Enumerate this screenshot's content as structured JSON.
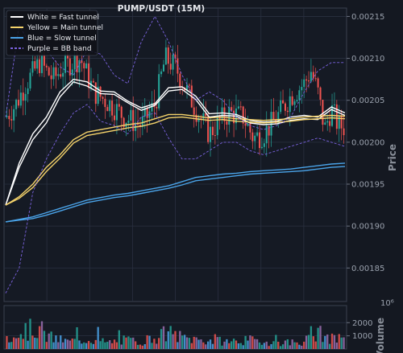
{
  "chart_data": {
    "type": "line",
    "title": "PUMP/USDT (15M)",
    "ylabel": "Price",
    "ylim": [
      0.00181,
      0.00216
    ],
    "yticks": [
      "0.00185",
      "0.00190",
      "0.00195",
      "0.00200",
      "0.00205",
      "0.00210",
      "0.00215"
    ],
    "ytick_values": [
      0.00185,
      0.0019,
      0.00195,
      0.002,
      0.00205,
      0.0021,
      0.00215
    ],
    "grid": true,
    "legend_position": "top-left",
    "legend": [
      {
        "label": "White = Fast tunnel",
        "color": "#ffffff",
        "dash": false
      },
      {
        "label": "Yellow = Main tunnel",
        "color": "#f5d36b",
        "dash": false
      },
      {
        "label": "Blue = Slow tunnel",
        "color": "#4aa3e8",
        "dash": false
      },
      {
        "label": "Purple = BB band",
        "color": "#7b63e0",
        "dash": true
      }
    ],
    "colors": {
      "up": "#26a69a",
      "down": "#ef5350",
      "background": "#141821",
      "grid": "#2a3040"
    },
    "series": [
      {
        "name": "White = Fast tunnel",
        "color": "#ffffff",
        "lines": [
          {
            "x": [
              0,
              4,
              8,
              12,
              16,
              20,
              24,
              28,
              32,
              36,
              40,
              44,
              48,
              52,
              56,
              60,
              64,
              68,
              72,
              76,
              80,
              84,
              88,
              92,
              96,
              100
            ],
            "y": [
              0.001925,
              0.001975,
              0.00201,
              0.00203,
              0.00206,
              0.002075,
              0.002072,
              0.002061,
              0.00206,
              0.002049,
              0.002041,
              0.002046,
              0.002065,
              0.002066,
              0.002055,
              0.002034,
              0.002035,
              0.002033,
              0.002026,
              0.002024,
              0.002025,
              0.00203,
              0.002032,
              0.00203,
              0.002042,
              0.002035
            ]
          },
          {
            "x": [
              0,
              4,
              8,
              12,
              16,
              20,
              24,
              28,
              32,
              36,
              40,
              44,
              48,
              52,
              56,
              60,
              64,
              68,
              72,
              76,
              80,
              84,
              88,
              92,
              96,
              100
            ],
            "y": [
              0.001925,
              0.00197,
              0.002003,
              0.002023,
              0.002054,
              0.002072,
              0.002067,
              0.002058,
              0.002057,
              0.002047,
              0.002038,
              0.002044,
              0.002061,
              0.002063,
              0.002051,
              0.00203,
              0.002032,
              0.002031,
              0.002023,
              0.002021,
              0.002022,
              0.002026,
              0.002028,
              0.002027,
              0.002039,
              0.002032
            ]
          }
        ]
      },
      {
        "name": "Yellow = Main tunnel",
        "color": "#f5d36b",
        "lines": [
          {
            "x": [
              0,
              4,
              8,
              12,
              16,
              20,
              24,
              28,
              32,
              36,
              40,
              44,
              48,
              52,
              56,
              60,
              64,
              68,
              72,
              76,
              80,
              84,
              88,
              92,
              96,
              100
            ],
            "y": [
              0.001925,
              0.001935,
              0.00195,
              0.00197,
              0.001985,
              0.002003,
              0.002012,
              0.002015,
              0.002018,
              0.002021,
              0.002023,
              0.002028,
              0.002033,
              0.002033,
              0.002031,
              0.002029,
              0.00203,
              0.002028,
              0.002027,
              0.002026,
              0.002027,
              0.002028,
              0.00203,
              0.002031,
              0.002032,
              0.002031
            ]
          },
          {
            "x": [
              0,
              4,
              8,
              12,
              16,
              20,
              24,
              28,
              32,
              36,
              40,
              44,
              48,
              52,
              56,
              60,
              64,
              68,
              72,
              76,
              80,
              84,
              88,
              92,
              96,
              100
            ],
            "y": [
              0.001925,
              0.001933,
              0.001946,
              0.001965,
              0.001981,
              0.001999,
              0.002008,
              0.002011,
              0.002014,
              0.002017,
              0.002019,
              0.002023,
              0.002029,
              0.00203,
              0.002028,
              0.002026,
              0.002027,
              0.002025,
              0.002024,
              0.002023,
              0.002024,
              0.002025,
              0.002027,
              0.002028,
              0.002029,
              0.002028
            ]
          }
        ]
      },
      {
        "name": "Blue = Slow tunnel",
        "color": "#4aa3e8",
        "lines": [
          {
            "x": [
              0,
              4,
              8,
              12,
              16,
              20,
              24,
              28,
              32,
              36,
              40,
              44,
              48,
              52,
              56,
              60,
              64,
              68,
              72,
              76,
              80,
              84,
              88,
              92,
              96,
              100
            ],
            "y": [
              0.001905,
              0.001908,
              0.001911,
              0.001916,
              0.001921,
              0.001926,
              0.001931,
              0.001934,
              0.001937,
              0.001939,
              0.001942,
              0.001945,
              0.001948,
              0.001953,
              0.001958,
              0.00196,
              0.001962,
              0.001963,
              0.001965,
              0.001966,
              0.001967,
              0.001968,
              0.00197,
              0.001972,
              0.001974,
              0.001975
            ]
          },
          {
            "x": [
              0,
              4,
              8,
              12,
              16,
              20,
              24,
              28,
              32,
              36,
              40,
              44,
              48,
              52,
              56,
              60,
              64,
              68,
              72,
              76,
              80,
              84,
              88,
              92,
              96,
              100
            ],
            "y": [
              0.001905,
              0.001907,
              0.001909,
              0.001913,
              0.001918,
              0.001923,
              0.001928,
              0.001931,
              0.001934,
              0.001936,
              0.001939,
              0.001942,
              0.001945,
              0.001949,
              0.001954,
              0.001956,
              0.001958,
              0.00196,
              0.001962,
              0.001963,
              0.001964,
              0.001965,
              0.001966,
              0.001968,
              0.00197,
              0.001971
            ]
          }
        ]
      },
      {
        "name": "Purple = BB band",
        "color": "#7b63e0",
        "dash": true,
        "lines": [
          {
            "x": [
              0,
              4,
              8,
              12,
              16,
              20,
              24,
              28,
              32,
              36,
              40,
              44,
              48,
              52,
              56,
              60,
              64,
              68,
              72,
              76,
              80,
              84,
              88,
              92,
              96,
              100
            ],
            "y": [
              0.00203,
              0.00214,
              0.00211,
              0.00211,
              0.00209,
              0.00208,
              0.00211,
              0.002105,
              0.00208,
              0.00207,
              0.00212,
              0.00215,
              0.00212,
              0.00208,
              0.00205,
              0.00206,
              0.00205,
              0.00203,
              0.00202,
              0.002015,
              0.00202,
              0.00203,
              0.00206,
              0.002085,
              0.002095,
              0.002095
            ]
          },
          {
            "x": [
              0,
              4,
              8,
              12,
              16,
              20,
              24,
              28,
              32,
              36,
              40,
              44,
              48,
              52,
              56,
              60,
              64,
              68,
              72,
              76,
              80,
              84,
              88,
              92,
              96,
              100
            ],
            "y": [
              0.00182,
              0.00185,
              0.00194,
              0.00198,
              0.00201,
              0.002035,
              0.002045,
              0.002025,
              0.00202,
              0.00201,
              0.00203,
              0.002035,
              0.002005,
              0.00198,
              0.00198,
              0.00199,
              0.002,
              0.002,
              0.00199,
              0.001985,
              0.00199,
              0.001995,
              0.002,
              0.002005,
              0.002,
              0.001995
            ]
          }
        ]
      }
    ],
    "candles": {
      "count": 145,
      "shape": [
        [
          0,
          0.00203
        ],
        [
          3,
          0.002045
        ],
        [
          6,
          0.00207
        ],
        [
          10,
          0.002095
        ],
        [
          14,
          0.002075
        ],
        [
          17,
          0.00209
        ],
        [
          22,
          0.0021
        ],
        [
          26,
          0.00206
        ],
        [
          31,
          0.002045
        ],
        [
          35,
          0.00203
        ],
        [
          40,
          0.00202
        ],
        [
          44,
          0.002045
        ],
        [
          47,
          0.0021
        ],
        [
          50,
          0.00209
        ],
        [
          53,
          0.002065
        ],
        [
          56,
          0.00204
        ],
        [
          60,
          0.00201
        ],
        [
          63,
          0.002025
        ],
        [
          66,
          0.002035
        ],
        [
          70,
          0.00203
        ],
        [
          73,
          0.002005
        ],
        [
          76,
          0.00201
        ],
        [
          80,
          0.00203
        ],
        [
          84,
          0.002055
        ],
        [
          88,
          0.00207
        ],
        [
          90,
          0.002085
        ],
        [
          92,
          0.00206
        ],
        [
          94,
          0.002015
        ],
        [
          96,
          0.00204
        ],
        [
          98,
          0.00202
        ],
        [
          100,
          0.002018
        ]
      ]
    },
    "volume": {
      "axis_label": "Volume",
      "exponent_label": "10⁶",
      "ylim": [
        0,
        3300
      ],
      "yticks": [
        "1000",
        "2000"
      ],
      "ytick_values": [
        1000,
        2000
      ],
      "profile": [
        [
          0,
          900
        ],
        [
          5,
          1400
        ],
        [
          10,
          1700
        ],
        [
          12,
          1000
        ],
        [
          18,
          600
        ],
        [
          25,
          800
        ],
        [
          30,
          500
        ],
        [
          35,
          700
        ],
        [
          40,
          600
        ],
        [
          48,
          1300
        ],
        [
          52,
          900
        ],
        [
          58,
          700
        ],
        [
          65,
          600
        ],
        [
          72,
          700
        ],
        [
          80,
          500
        ],
        [
          88,
          600
        ],
        [
          92,
          1300
        ],
        [
          96,
          800
        ],
        [
          100,
          600
        ]
      ]
    }
  }
}
